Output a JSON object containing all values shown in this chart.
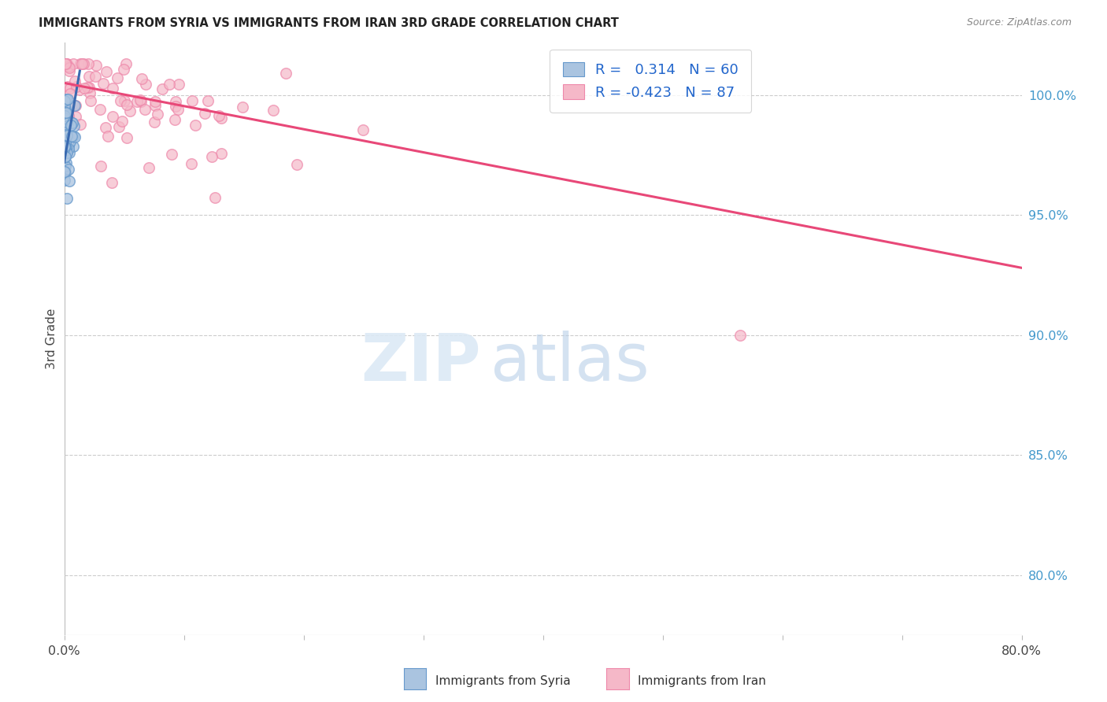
{
  "title": "IMMIGRANTS FROM SYRIA VS IMMIGRANTS FROM IRAN 3RD GRADE CORRELATION CHART",
  "source": "Source: ZipAtlas.com",
  "ylabel": "3rd Grade",
  "ytick_labels": [
    "100.0%",
    "95.0%",
    "90.0%",
    "85.0%",
    "80.0%"
  ],
  "ytick_values": [
    1.0,
    0.95,
    0.9,
    0.85,
    0.8
  ],
  "xlim": [
    0.0,
    0.8
  ],
  "ylim": [
    0.775,
    1.022
  ],
  "syria_R": 0.314,
  "syria_N": 60,
  "iran_R": -0.423,
  "iran_N": 87,
  "syria_color": "#aac4e0",
  "iran_color": "#f5b8c8",
  "syria_edge_color": "#6699cc",
  "iran_edge_color": "#ee88aa",
  "syria_line_color": "#3a6ab0",
  "iran_line_color": "#e84878",
  "background_color": "#ffffff",
  "grid_color": "#cccccc",
  "title_fontsize": 10.5,
  "source_fontsize": 9,
  "axis_label_color": "#444444",
  "ytick_color": "#4499cc",
  "legend_syria_label": "Immigrants from Syria",
  "legend_iran_label": "Immigrants from Iran",
  "legend_r_color": "#222222",
  "legend_n_color": "#2266cc",
  "syria_trend_x": [
    0.0,
    0.013
  ],
  "syria_trend_y": [
    0.972,
    1.01
  ],
  "iran_trend_x": [
    0.0,
    0.8
  ],
  "iran_trend_y": [
    1.005,
    0.928
  ]
}
